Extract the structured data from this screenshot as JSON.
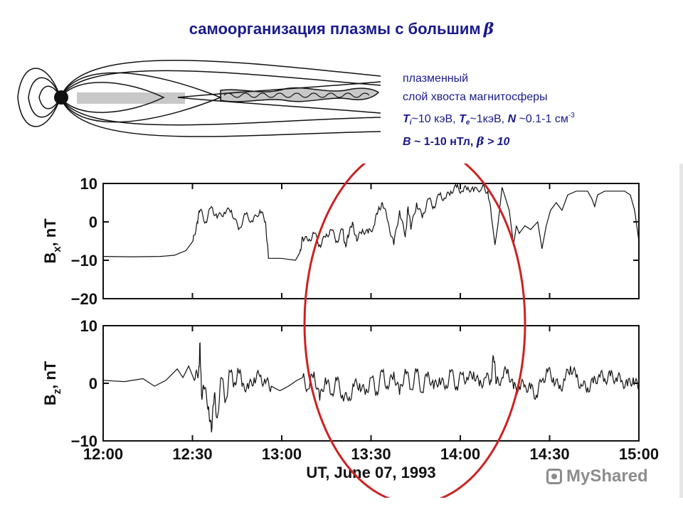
{
  "title": {
    "text": "самоорганизация плазмы с большим",
    "symbol": "β"
  },
  "legend": {
    "line1": "плазменный",
    "line2": "слой хвоста магнитосферы",
    "ti": "T",
    "ti_sub": "i",
    "ti_rest": "~10 кэВ, ",
    "te": "T",
    "te_sub": "e",
    "te_rest": "~1кэВ, ",
    "n": "N",
    "n_rest": " ~0.1-1 см",
    "n_exp": "-3",
    "b": "B",
    "b_rest": " ~ 1-10 нТл, ",
    "beta_sym": "β",
    "beta_rest": " > 10"
  },
  "colors": {
    "title": "#1a1a8c",
    "ellipse": "#cc2222",
    "trace": "#111111",
    "plasma_sheet": "#c8c8c8"
  },
  "watermark": {
    "text": "MyShared"
  },
  "chart_data": [
    {
      "type": "line",
      "ylabel": "Bx, nT",
      "ylabel_main": "B",
      "ylabel_sub": "x",
      "ylabel_rest": ", nT",
      "ylim": [
        -20,
        10
      ],
      "yticks": [
        "10",
        "0",
        "−10",
        "−20"
      ],
      "xlim_min": [
        0,
        180
      ],
      "series": [
        {
          "points": [
            [
              0,
              -9
            ],
            [
              20,
              -9.1
            ],
            [
              40,
              -9
            ],
            [
              50,
              -8.7
            ],
            [
              58,
              -7.5
            ],
            [
              63,
              -5
            ],
            [
              66,
              0
            ],
            [
              68,
              3
            ],
            [
              72,
              0
            ],
            [
              76,
              4
            ],
            [
              80,
              1
            ],
            [
              85,
              2.5
            ],
            [
              90,
              3
            ],
            [
              95,
              -2
            ],
            [
              100,
              2
            ],
            [
              105,
              0
            ],
            [
              110,
              3
            ],
            [
              114,
              0
            ],
            [
              116,
              -9.5
            ],
            [
              125,
              -9.5
            ],
            [
              135,
              -10
            ],
            [
              138,
              -8
            ],
            [
              140,
              -4
            ],
            [
              144,
              -5
            ],
            [
              148,
              -3
            ],
            [
              152,
              -6
            ],
            [
              156,
              -4
            ],
            [
              160,
              -2
            ],
            [
              164,
              -5
            ],
            [
              168,
              -2
            ],
            [
              170,
              -6
            ],
            [
              172,
              -4
            ],
            [
              175,
              0
            ],
            [
              178,
              -5
            ],
            [
              182,
              -2
            ],
            [
              186,
              -3
            ],
            [
              190,
              -1
            ],
            [
              193,
              3
            ],
            [
              196,
              5
            ],
            [
              200,
              0
            ],
            [
              204,
              -6
            ],
            [
              208,
              3
            ],
            [
              212,
              -4
            ],
            [
              214,
              4
            ],
            [
              216,
              -2
            ],
            [
              220,
              5
            ],
            [
              224,
              1
            ],
            [
              228,
              6
            ],
            [
              232,
              4
            ],
            [
              236,
              7
            ],
            [
              240,
              6
            ],
            [
              244,
              8
            ],
            [
              248,
              9
            ],
            [
              252,
              8
            ],
            [
              256,
              9
            ],
            [
              260,
              8
            ],
            [
              266,
              9
            ],
            [
              270,
              8
            ],
            [
              273,
              0
            ],
            [
              275,
              -6
            ],
            [
              277,
              -1
            ],
            [
              280,
              9
            ],
            [
              285,
              3
            ],
            [
              288,
              -6
            ],
            [
              290,
              -1
            ],
            [
              292,
              -3
            ],
            [
              296,
              -1
            ],
            [
              300,
              -2
            ],
            [
              305,
              0
            ],
            [
              308,
              -7
            ],
            [
              311,
              -1
            ],
            [
              314,
              3
            ],
            [
              318,
              5
            ],
            [
              322,
              3
            ],
            [
              326,
              7
            ],
            [
              332,
              8
            ],
            [
              336,
              8
            ],
            [
              340,
              8
            ],
            [
              343,
              6
            ],
            [
              345,
              4
            ],
            [
              347,
              7
            ],
            [
              352,
              8
            ],
            [
              360,
              8
            ],
            [
              366,
              8
            ],
            [
              370,
              7
            ],
            [
              373,
              3
            ],
            [
              376,
              -5
            ]
          ]
        }
      ]
    },
    {
      "type": "line",
      "ylabel": "Bz, nT",
      "ylabel_main": "B",
      "ylabel_sub": "z",
      "ylabel_rest": ", nT",
      "ylim": [
        -10,
        10
      ],
      "yticks": [
        "10",
        "0",
        "−10"
      ],
      "xticks": [
        "12:00",
        "12:30",
        "13:00",
        "13:30",
        "14:00",
        "14:30",
        "15:00"
      ],
      "xlabel": "UT, June 07, 1993",
      "series": [
        {
          "points": [
            [
              0,
              0.5
            ],
            [
              15,
              0.3
            ],
            [
              28,
              0.8
            ],
            [
              36,
              -0.5
            ],
            [
              44,
              0.5
            ],
            [
              48,
              1.5
            ],
            [
              52,
              2.5
            ],
            [
              56,
              1
            ],
            [
              60,
              3
            ],
            [
              64,
              0.5
            ],
            [
              67,
              2
            ],
            [
              68,
              7
            ],
            [
              69,
              -2
            ],
            [
              71,
              -1
            ],
            [
              74,
              -4
            ],
            [
              76,
              -8.5
            ],
            [
              78,
              -2
            ],
            [
              80,
              -6
            ],
            [
              83,
              1
            ],
            [
              86,
              -3
            ],
            [
              89,
              2
            ],
            [
              92,
              0
            ],
            [
              95,
              2
            ],
            [
              98,
              0
            ],
            [
              102,
              -1
            ],
            [
              106,
              1
            ],
            [
              110,
              1.2
            ],
            [
              114,
              0
            ],
            [
              118,
              -0.5
            ],
            [
              124,
              -1.3
            ],
            [
              130,
              -0.5
            ],
            [
              136,
              0.5
            ],
            [
              140,
              1
            ],
            [
              144,
              -1
            ],
            [
              148,
              2
            ],
            [
              152,
              -3
            ],
            [
              156,
              1
            ],
            [
              160,
              -2
            ],
            [
              164,
              0.5
            ],
            [
              168,
              -2
            ],
            [
              172,
              -3
            ],
            [
              176,
              -0.5
            ],
            [
              180,
              0
            ],
            [
              184,
              -2
            ],
            [
              188,
              1
            ],
            [
              192,
              -1.5
            ],
            [
              196,
              2
            ],
            [
              200,
              -1
            ],
            [
              204,
              2
            ],
            [
              208,
              -2
            ],
            [
              212,
              2.5
            ],
            [
              216,
              -1
            ],
            [
              220,
              2
            ],
            [
              224,
              -1.5
            ],
            [
              228,
              2
            ],
            [
              232,
              -1
            ],
            [
              236,
              1
            ],
            [
              240,
              -1
            ],
            [
              244,
              2
            ],
            [
              248,
              -0.5
            ],
            [
              252,
              1.5
            ],
            [
              256,
              0.5
            ],
            [
              260,
              2
            ],
            [
              264,
              -0.5
            ],
            [
              268,
              1
            ],
            [
              272,
              0.5
            ],
            [
              274,
              4.5
            ],
            [
              276,
              0
            ],
            [
              280,
              1
            ],
            [
              284,
              2.5
            ],
            [
              288,
              -1
            ],
            [
              292,
              -0.5
            ],
            [
              296,
              -0.3
            ],
            [
              300,
              -1
            ],
            [
              304,
              -2
            ],
            [
              308,
              0.5
            ],
            [
              312,
              2
            ],
            [
              316,
              1
            ],
            [
              320,
              -1
            ],
            [
              324,
              0.5
            ],
            [
              328,
              3
            ],
            [
              332,
              1
            ],
            [
              336,
              -0.5
            ],
            [
              340,
              -0.7
            ],
            [
              344,
              0
            ],
            [
              348,
              1.5
            ],
            [
              352,
              0.8
            ],
            [
              356,
              1.2
            ],
            [
              360,
              1
            ],
            [
              364,
              0.5
            ],
            [
              368,
              -0.5
            ],
            [
              372,
              1
            ],
            [
              376,
              -1.3
            ]
          ]
        }
      ]
    }
  ]
}
